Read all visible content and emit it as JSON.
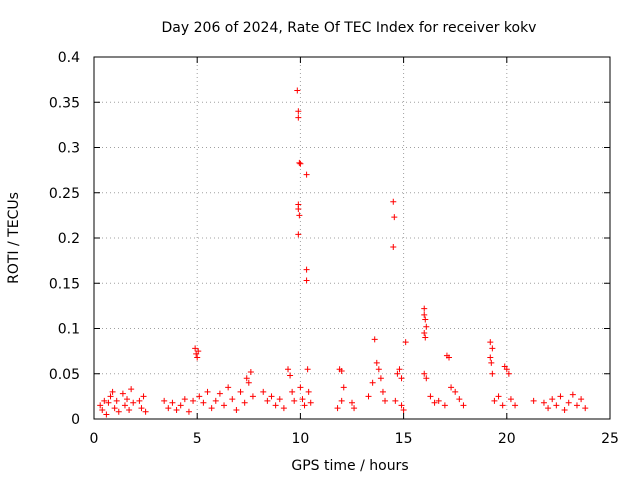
{
  "chart_data": {
    "type": "scatter",
    "title": "Day 206 of 2024, Rate Of TEC Index for receiver kokv",
    "xlabel": "GPS time / hours",
    "ylabel": "ROTI / TECUs",
    "xlim": [
      0,
      25
    ],
    "ylim": [
      0,
      0.4
    ],
    "xticks": [
      0,
      5,
      10,
      15,
      20,
      25
    ],
    "xtick_labels": [
      "0",
      "5",
      "10",
      "15",
      "20",
      "25"
    ],
    "yticks": [
      0,
      0.05,
      0.1,
      0.15,
      0.2,
      0.25,
      0.3,
      0.35,
      0.4
    ],
    "ytick_labels": [
      "0",
      "0.05",
      "0.1",
      "0.15",
      "0.2",
      "0.25",
      "0.3",
      "0.35",
      "0.4"
    ],
    "grid": true,
    "marker": "plus",
    "color": "#ff0000",
    "points": [
      [
        0.3,
        0.015
      ],
      [
        0.4,
        0.01
      ],
      [
        0.5,
        0.02
      ],
      [
        0.6,
        0.005
      ],
      [
        0.7,
        0.018
      ],
      [
        0.8,
        0.025
      ],
      [
        0.9,
        0.03
      ],
      [
        1.0,
        0.012
      ],
      [
        1.1,
        0.02
      ],
      [
        1.2,
        0.008
      ],
      [
        1.4,
        0.028
      ],
      [
        1.5,
        0.015
      ],
      [
        1.6,
        0.022
      ],
      [
        1.7,
        0.01
      ],
      [
        1.8,
        0.033
      ],
      [
        1.9,
        0.018
      ],
      [
        2.2,
        0.02
      ],
      [
        2.3,
        0.012
      ],
      [
        2.4,
        0.025
      ],
      [
        2.5,
        0.008
      ],
      [
        3.4,
        0.02
      ],
      [
        3.6,
        0.012
      ],
      [
        3.8,
        0.018
      ],
      [
        4.0,
        0.01
      ],
      [
        4.2,
        0.015
      ],
      [
        4.4,
        0.022
      ],
      [
        4.6,
        0.008
      ],
      [
        4.8,
        0.02
      ],
      [
        4.9,
        0.078
      ],
      [
        4.95,
        0.072
      ],
      [
        5.0,
        0.068
      ],
      [
        5.05,
        0.075
      ],
      [
        5.1,
        0.025
      ],
      [
        5.3,
        0.018
      ],
      [
        5.5,
        0.03
      ],
      [
        5.7,
        0.012
      ],
      [
        5.9,
        0.02
      ],
      [
        6.1,
        0.028
      ],
      [
        6.3,
        0.015
      ],
      [
        6.5,
        0.035
      ],
      [
        6.7,
        0.022
      ],
      [
        6.9,
        0.01
      ],
      [
        7.1,
        0.03
      ],
      [
        7.3,
        0.018
      ],
      [
        7.4,
        0.045
      ],
      [
        7.5,
        0.04
      ],
      [
        7.6,
        0.052
      ],
      [
        7.7,
        0.025
      ],
      [
        8.2,
        0.03
      ],
      [
        8.4,
        0.02
      ],
      [
        8.6,
        0.025
      ],
      [
        8.8,
        0.015
      ],
      [
        9.0,
        0.022
      ],
      [
        9.2,
        0.012
      ],
      [
        9.4,
        0.055
      ],
      [
        9.5,
        0.048
      ],
      [
        9.6,
        0.03
      ],
      [
        9.7,
        0.02
      ],
      [
        9.85,
        0.363
      ],
      [
        9.9,
        0.34
      ],
      [
        9.9,
        0.333
      ],
      [
        9.95,
        0.283
      ],
      [
        10.0,
        0.282
      ],
      [
        9.9,
        0.237
      ],
      [
        9.9,
        0.232
      ],
      [
        9.95,
        0.225
      ],
      [
        9.9,
        0.204
      ],
      [
        10.3,
        0.27
      ],
      [
        10.3,
        0.165
      ],
      [
        10.3,
        0.153
      ],
      [
        10.35,
        0.055
      ],
      [
        10.0,
        0.035
      ],
      [
        10.1,
        0.022
      ],
      [
        10.2,
        0.015
      ],
      [
        10.4,
        0.03
      ],
      [
        10.5,
        0.018
      ],
      [
        11.9,
        0.055
      ],
      [
        12.0,
        0.053
      ],
      [
        12.1,
        0.035
      ],
      [
        12.0,
        0.02
      ],
      [
        11.8,
        0.012
      ],
      [
        12.5,
        0.018
      ],
      [
        12.6,
        0.012
      ],
      [
        13.3,
        0.025
      ],
      [
        13.5,
        0.04
      ],
      [
        13.6,
        0.088
      ],
      [
        13.7,
        0.062
      ],
      [
        13.8,
        0.055
      ],
      [
        13.9,
        0.045
      ],
      [
        14.0,
        0.03
      ],
      [
        14.1,
        0.02
      ],
      [
        14.5,
        0.24
      ],
      [
        14.55,
        0.223
      ],
      [
        14.5,
        0.19
      ],
      [
        14.7,
        0.05
      ],
      [
        14.8,
        0.055
      ],
      [
        14.9,
        0.045
      ],
      [
        15.1,
        0.085
      ],
      [
        14.6,
        0.02
      ],
      [
        14.9,
        0.015
      ],
      [
        15.0,
        0.01
      ],
      [
        16.0,
        0.122
      ],
      [
        16.0,
        0.115
      ],
      [
        16.05,
        0.11
      ],
      [
        16.1,
        0.102
      ],
      [
        16.0,
        0.095
      ],
      [
        16.05,
        0.09
      ],
      [
        16.0,
        0.05
      ],
      [
        16.1,
        0.045
      ],
      [
        16.3,
        0.025
      ],
      [
        16.5,
        0.018
      ],
      [
        16.7,
        0.02
      ],
      [
        17.0,
        0.015
      ],
      [
        17.1,
        0.07
      ],
      [
        17.2,
        0.068
      ],
      [
        17.3,
        0.035
      ],
      [
        17.5,
        0.03
      ],
      [
        17.7,
        0.022
      ],
      [
        17.9,
        0.015
      ],
      [
        19.2,
        0.085
      ],
      [
        19.3,
        0.078
      ],
      [
        19.2,
        0.068
      ],
      [
        19.25,
        0.062
      ],
      [
        19.3,
        0.05
      ],
      [
        19.4,
        0.02
      ],
      [
        19.6,
        0.025
      ],
      [
        19.8,
        0.015
      ],
      [
        19.9,
        0.058
      ],
      [
        20.0,
        0.055
      ],
      [
        20.1,
        0.05
      ],
      [
        20.2,
        0.022
      ],
      [
        20.4,
        0.015
      ],
      [
        21.3,
        0.02
      ],
      [
        21.8,
        0.018
      ],
      [
        22.0,
        0.012
      ],
      [
        22.2,
        0.022
      ],
      [
        22.4,
        0.015
      ],
      [
        22.6,
        0.025
      ],
      [
        22.8,
        0.01
      ],
      [
        23.0,
        0.018
      ],
      [
        23.2,
        0.027
      ],
      [
        23.4,
        0.015
      ],
      [
        23.6,
        0.022
      ],
      [
        23.8,
        0.012
      ]
    ]
  }
}
